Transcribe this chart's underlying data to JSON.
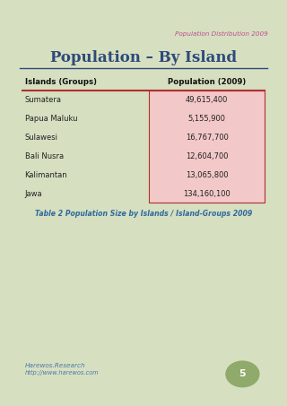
{
  "page_title": "Population Distribution 2009",
  "main_title": "Population – By Island",
  "subtitle_caption": "Table 2 Population Size by Islands / Island-Groups 2009",
  "footer_brand": "Harewos.Research",
  "footer_url": "http://www.harewos.com",
  "page_number": "5",
  "col1_header": "Islands (Groups)",
  "col2_header": "Population (2009)",
  "rows": [
    {
      "island": "Sumatera",
      "population": "49,615,400"
    },
    {
      "island": "Papua Maluku",
      "population": "5,155,900"
    },
    {
      "island": "Sulawesi",
      "population": "16,767,700"
    },
    {
      "island": "Bali Nusra",
      "population": "12,604,700"
    },
    {
      "island": "Kalimantan",
      "population": "13,065,800"
    },
    {
      "island": "Jawa",
      "population": "134,160,100"
    }
  ],
  "bg_color": "#d6dfc0",
  "page_bg": "#f7f7f2",
  "table_cell_bg": "#f2c8c8",
  "table_header_sep_color": "#b03030",
  "table_border_color": "#b03030",
  "title_color": "#2e4a7a",
  "page_title_color": "#c05090",
  "caption_color": "#2e6a9e",
  "footer_color": "#4a7aaa",
  "page_num_bg": "#8faa6a",
  "header_bold_color": "#1a1a1a"
}
